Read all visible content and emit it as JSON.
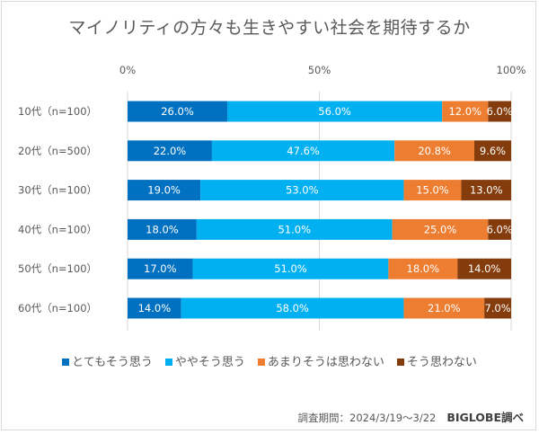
{
  "chart_data": {
    "type": "bar",
    "orientation": "horizontal-stacked-100",
    "title": "マイノリティの方々も生きやすい社会を期待するか",
    "xlabel": "",
    "ylabel": "",
    "xlim": [
      0,
      100
    ],
    "x_ticks": [
      "0%",
      "50%",
      "100%"
    ],
    "grid": true,
    "legend_position": "bottom",
    "categories": [
      "10代（n=100）",
      "20代（n=500）",
      "30代（n=100）",
      "40代（n=100）",
      "50代（n=100）",
      "60代（n=100）"
    ],
    "series": [
      {
        "name": "とてもそう思う",
        "color": "#0070c0",
        "values": [
          26.0,
          22.0,
          19.0,
          18.0,
          17.0,
          14.0
        ]
      },
      {
        "name": "ややそう思う",
        "color": "#00b0f0",
        "values": [
          56.0,
          47.6,
          53.0,
          51.0,
          51.0,
          58.0
        ]
      },
      {
        "name": "あまりそうは思わない",
        "color": "#ed7d31",
        "values": [
          12.0,
          20.8,
          15.0,
          25.0,
          18.0,
          21.0
        ]
      },
      {
        "name": "そう思わない",
        "color": "#843c0c",
        "values": [
          6.0,
          9.6,
          13.0,
          6.0,
          14.0,
          7.0
        ]
      }
    ],
    "value_format": "{v}%"
  },
  "footer": {
    "period": "調査期間：2024/3/19～3/22",
    "source": "BIGLOBE調べ"
  }
}
